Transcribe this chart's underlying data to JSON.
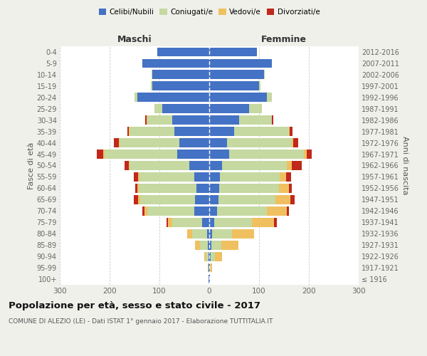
{
  "age_groups": [
    "100+",
    "95-99",
    "90-94",
    "85-89",
    "80-84",
    "75-79",
    "70-74",
    "65-69",
    "60-64",
    "55-59",
    "50-54",
    "45-49",
    "40-44",
    "35-39",
    "30-34",
    "25-29",
    "20-24",
    "15-19",
    "10-14",
    "5-9",
    "0-4"
  ],
  "birth_years": [
    "≤ 1916",
    "1917-1921",
    "1922-1926",
    "1927-1931",
    "1932-1936",
    "1937-1941",
    "1942-1946",
    "1947-1951",
    "1952-1956",
    "1957-1961",
    "1962-1966",
    "1967-1971",
    "1972-1976",
    "1977-1981",
    "1982-1986",
    "1987-1991",
    "1992-1996",
    "1997-2001",
    "2002-2006",
    "2007-2011",
    "2012-2016"
  ],
  "male": {
    "celibi": [
      1,
      1,
      2,
      3,
      5,
      15,
      30,
      28,
      26,
      30,
      40,
      65,
      60,
      70,
      75,
      95,
      145,
      115,
      115,
      135,
      105
    ],
    "coniugati": [
      0,
      1,
      5,
      15,
      30,
      60,
      95,
      110,
      115,
      110,
      120,
      145,
      120,
      90,
      50,
      15,
      5,
      2,
      1,
      0,
      0
    ],
    "vedovi": [
      0,
      1,
      3,
      10,
      10,
      8,
      5,
      5,
      3,
      3,
      2,
      3,
      1,
      2,
      1,
      0,
      0,
      0,
      0,
      0,
      0
    ],
    "divorziati": [
      0,
      0,
      0,
      0,
      0,
      3,
      5,
      8,
      5,
      8,
      8,
      12,
      10,
      3,
      3,
      0,
      0,
      0,
      0,
      0,
      0
    ]
  },
  "female": {
    "nubili": [
      1,
      1,
      3,
      4,
      5,
      10,
      15,
      18,
      20,
      22,
      25,
      40,
      35,
      50,
      60,
      80,
      115,
      100,
      110,
      125,
      95
    ],
    "coniugate": [
      0,
      2,
      8,
      20,
      40,
      75,
      100,
      115,
      120,
      120,
      130,
      150,
      130,
      110,
      65,
      25,
      10,
      3,
      1,
      0,
      0
    ],
    "vedove": [
      1,
      3,
      15,
      35,
      45,
      45,
      40,
      30,
      20,
      12,
      10,
      5,
      3,
      2,
      1,
      0,
      0,
      0,
      0,
      0,
      0
    ],
    "divorziate": [
      0,
      0,
      0,
      0,
      0,
      5,
      5,
      8,
      5,
      10,
      20,
      10,
      10,
      5,
      2,
      0,
      0,
      0,
      0,
      0,
      0
    ]
  },
  "colors": {
    "celibi": "#4472c4",
    "coniugati": "#c5d9a0",
    "vedovi": "#f0c060",
    "divorziati": "#c0281c"
  },
  "xlim": 300,
  "title": "Popolazione per età, sesso e stato civile - 2017",
  "subtitle": "COMUNE DI ALEZIO (LE) - Dati ISTAT 1° gennaio 2017 - Elaborazione TUTTITALIA.IT",
  "ylabel_left": "Fasce di età",
  "ylabel_right": "Anni di nascita",
  "xlabel_left": "Maschi",
  "xlabel_right": "Femmine",
  "bg_color": "#f0f0eb",
  "plot_bg": "#ffffff"
}
